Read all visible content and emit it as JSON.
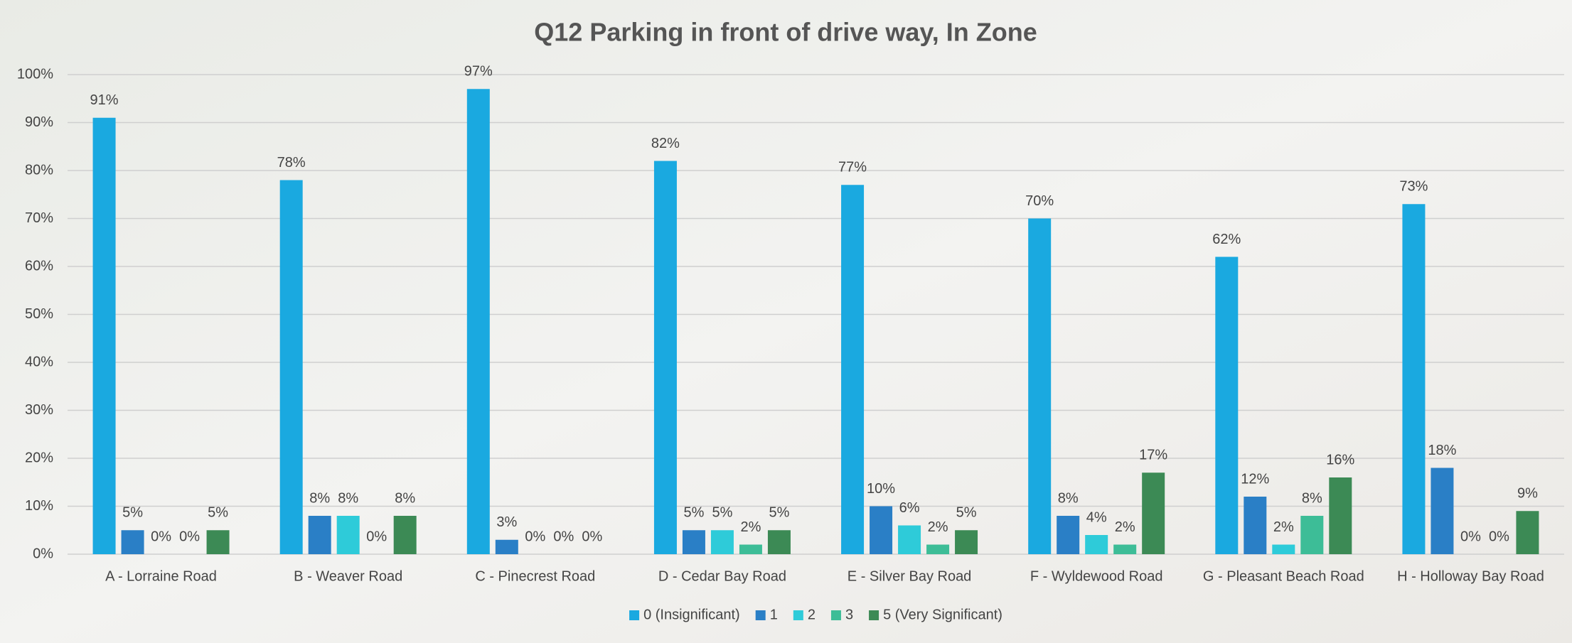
{
  "chart_data": {
    "type": "bar",
    "title": "Q12 Parking in front of drive way, In Zone",
    "categories": [
      "A - Lorraine Road",
      "B - Weaver Road",
      "C - Pinecrest Road",
      "D - Cedar Bay Road",
      "E - Silver Bay Road",
      "F - Wyldewood Road",
      "G - Pleasant Beach Road",
      "H - Holloway Bay Road"
    ],
    "series": [
      {
        "name": "0 (Insignificant)",
        "color": "#1aa9e0",
        "values": [
          91,
          78,
          97,
          82,
          77,
          70,
          62,
          73
        ],
        "value_labels": [
          "91%",
          "78%",
          "97%",
          "82%",
          "77%",
          "70%",
          "62%",
          "73%"
        ]
      },
      {
        "name": "1",
        "color": "#2a7fc6",
        "values": [
          5,
          8,
          3,
          5,
          10,
          8,
          12,
          18
        ],
        "value_labels": [
          "5%",
          "8%",
          "3%",
          "5%",
          "10%",
          "8%",
          "12%",
          "18%"
        ]
      },
      {
        "name": "2",
        "color": "#2ecbd9",
        "values": [
          0,
          8,
          0,
          5,
          6,
          4,
          2,
          0
        ],
        "value_labels": [
          "0%",
          "8%",
          "0%",
          "5%",
          "6%",
          "4%",
          "2%",
          "0%"
        ]
      },
      {
        "name": "3",
        "color": "#3dbd97",
        "values": [
          0,
          0,
          0,
          2,
          2,
          2,
          8,
          0
        ],
        "value_labels": [
          "0%",
          "0%",
          "0%",
          "2%",
          "2%",
          "2%",
          "8%",
          "0%"
        ]
      },
      {
        "name": "5 (Very Significant)",
        "color": "#3c8a55",
        "values": [
          5,
          8,
          0,
          5,
          5,
          17,
          16,
          9
        ],
        "value_labels": [
          "5%",
          "8%",
          "0%",
          "5%",
          "5%",
          "17%",
          "16%",
          "9%"
        ]
      }
    ],
    "ylim": [
      0,
      100
    ],
    "yticks": [
      {
        "value": 0,
        "label": "0%"
      },
      {
        "value": 10,
        "label": "10%"
      },
      {
        "value": 20,
        "label": "20%"
      },
      {
        "value": 30,
        "label": "30%"
      },
      {
        "value": 40,
        "label": "40%"
      },
      {
        "value": 50,
        "label": "50%"
      },
      {
        "value": 60,
        "label": "60%"
      },
      {
        "value": 70,
        "label": "70%"
      },
      {
        "value": 80,
        "label": "80%"
      },
      {
        "value": 90,
        "label": "90%"
      },
      {
        "value": 100,
        "label": "100%"
      }
    ],
    "grid": true,
    "legend": "bottom"
  }
}
